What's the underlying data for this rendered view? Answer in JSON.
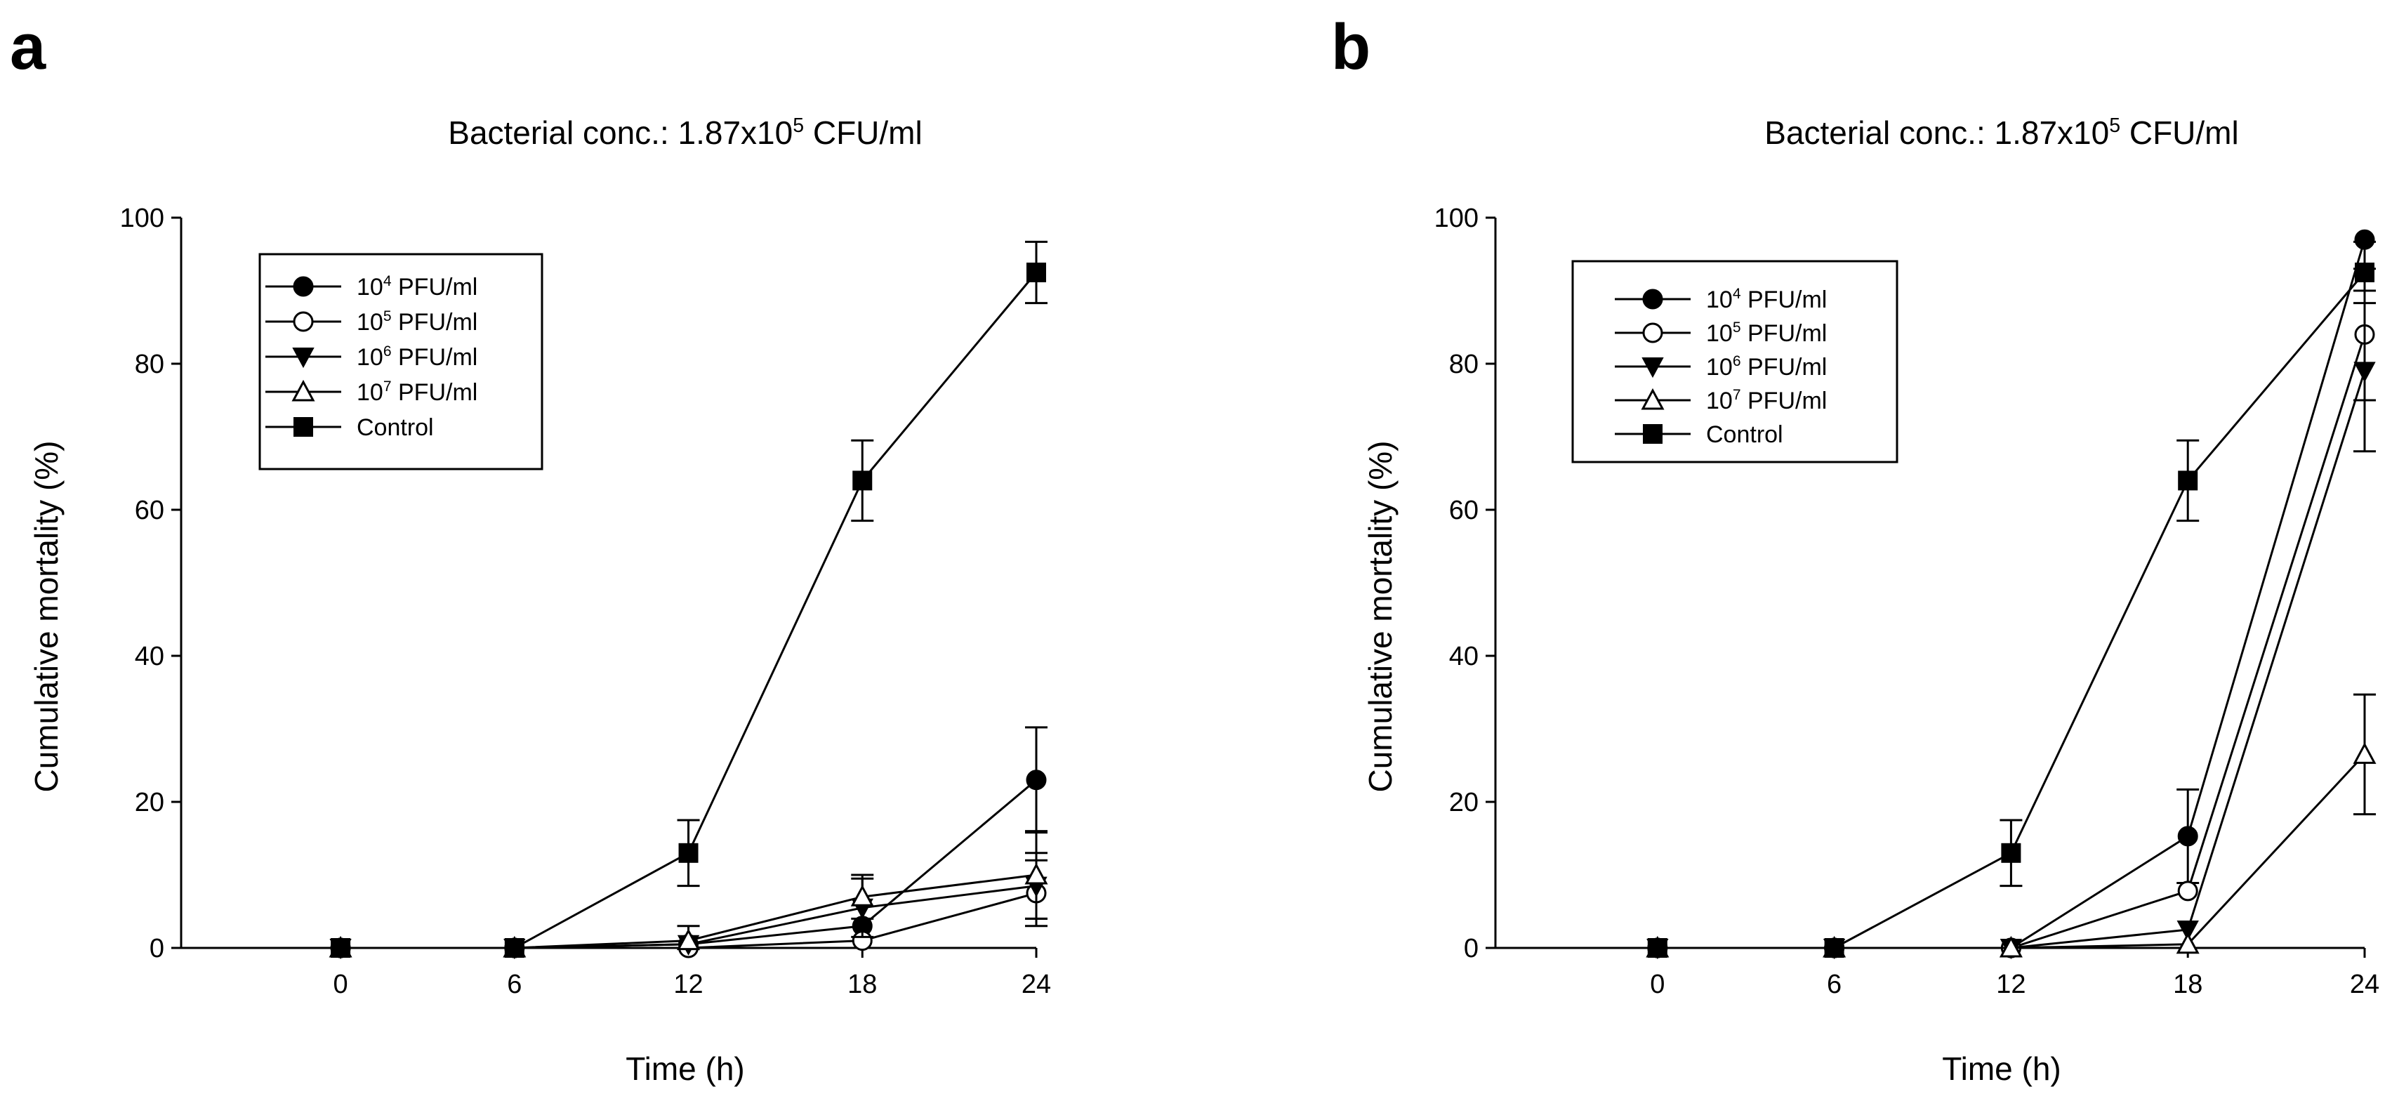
{
  "chart_data": [
    {
      "panel": "a",
      "type": "line",
      "title": "Bacterial conc.: 1.87x10",
      "title_sup": "5",
      "title_tail": " CFU/ml",
      "xlabel": "Time (h)",
      "ylabel": "Cumulative mortality (%)",
      "x": [
        0,
        6,
        12,
        18,
        24
      ],
      "xlim": [
        -5.5,
        24
      ],
      "ylim": [
        0,
        100
      ],
      "xticks": [
        0,
        6,
        12,
        18,
        24
      ],
      "yticks": [
        0,
        20,
        40,
        60,
        80,
        100
      ],
      "legend_position": "top-left",
      "series": [
        {
          "name": "10",
          "sup": "4",
          "tail": " PFU/ml",
          "marker": "circle-filled",
          "values": [
            0,
            0,
            0.5,
            3,
            23
          ],
          "errors": [
            0,
            0,
            0,
            0,
            7.2
          ]
        },
        {
          "name": "10",
          "sup": "5",
          "tail": " PFU/ml",
          "marker": "circle-open",
          "values": [
            0,
            0,
            0,
            1,
            7.5
          ],
          "errors": [
            0,
            0,
            0,
            0,
            4.5
          ]
        },
        {
          "name": "10",
          "sup": "6",
          "tail": " PFU/ml",
          "marker": "triangle-down-filled",
          "values": [
            0,
            0,
            0.5,
            5.5,
            8.5
          ],
          "errors": [
            0,
            0,
            0,
            4,
            4.5
          ]
        },
        {
          "name": "10",
          "sup": "7",
          "tail": " PFU/ml",
          "marker": "triangle-up-open",
          "values": [
            0,
            0,
            1,
            7,
            10
          ],
          "errors": [
            0,
            0,
            2,
            3,
            6
          ]
        },
        {
          "name": "Control",
          "sup": "",
          "tail": "",
          "marker": "square-filled",
          "values": [
            0,
            0,
            13,
            64,
            92.5
          ],
          "errors": [
            0,
            0,
            4.5,
            5.5,
            4.2
          ]
        }
      ]
    },
    {
      "panel": "b",
      "type": "line",
      "title": "Bacterial conc.: 1.87x10",
      "title_sup": "5",
      "title_tail": " CFU/ml",
      "xlabel": "Time (h)",
      "ylabel": "Cumulative mortality (%)",
      "x": [
        0,
        6,
        12,
        18,
        24
      ],
      "xlim": [
        -5.5,
        24
      ],
      "ylim": [
        0,
        100
      ],
      "xticks": [
        0,
        6,
        12,
        18,
        24
      ],
      "yticks": [
        0,
        20,
        40,
        60,
        80,
        100
      ],
      "legend_position": "top-left",
      "series": [
        {
          "name": "10",
          "sup": "4",
          "tail": " PFU/ml",
          "marker": "circle-filled",
          "values": [
            0,
            0,
            0,
            15.3,
            97
          ],
          "errors": [
            0,
            0,
            0,
            6.4,
            0
          ]
        },
        {
          "name": "10",
          "sup": "5",
          "tail": " PFU/ml",
          "marker": "circle-open",
          "values": [
            0,
            0,
            0,
            7.8,
            84
          ],
          "errors": [
            0,
            0,
            0,
            0,
            9
          ]
        },
        {
          "name": "10",
          "sup": "6",
          "tail": " PFU/ml",
          "marker": "triangle-down-filled",
          "values": [
            0,
            0,
            0,
            2.5,
            79
          ],
          "errors": [
            0,
            0,
            0,
            0,
            11
          ]
        },
        {
          "name": "10",
          "sup": "7",
          "tail": " PFU/ml",
          "marker": "triangle-up-open",
          "values": [
            0,
            0,
            0,
            0.5,
            26.5
          ],
          "errors": [
            0,
            0,
            0,
            0,
            8.2
          ]
        },
        {
          "name": "Control",
          "sup": "",
          "tail": "",
          "marker": "square-filled",
          "values": [
            0,
            0,
            13,
            64,
            92.5
          ],
          "errors": [
            0,
            0,
            4.5,
            5.5,
            4.2
          ]
        }
      ]
    }
  ]
}
